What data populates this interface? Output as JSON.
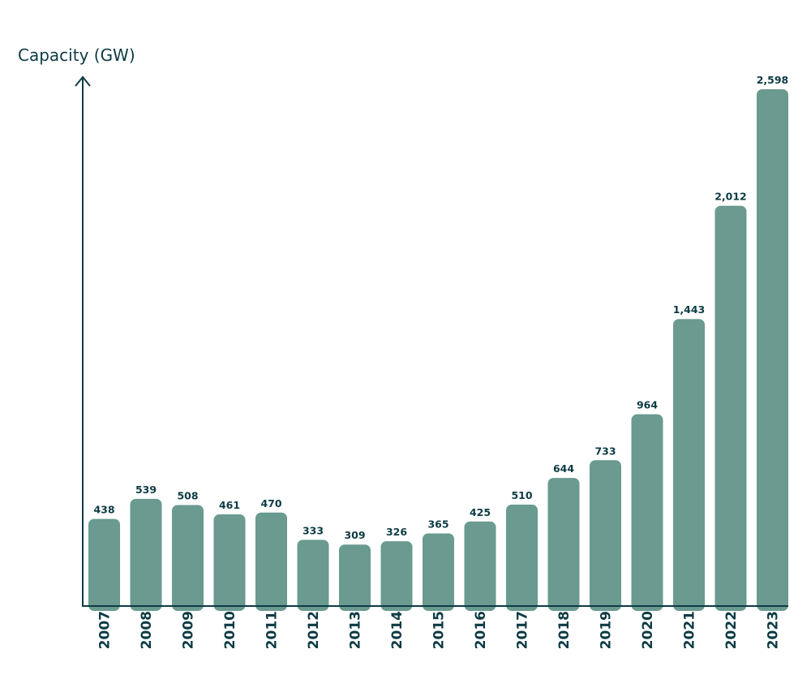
{
  "chart_data": {
    "type": "bar",
    "ylabel": "Capacity (GW)",
    "xlabel": "",
    "categories": [
      "2007",
      "2008",
      "2009",
      "2010",
      "2011",
      "2012",
      "2013",
      "2014",
      "2015",
      "2016",
      "2017",
      "2018",
      "2019",
      "2020",
      "2021",
      "2022",
      "2023"
    ],
    "values": [
      438,
      539,
      508,
      461,
      470,
      333,
      309,
      326,
      365,
      425,
      510,
      644,
      733,
      964,
      1443,
      2012,
      2598
    ],
    "value_labels": [
      "438",
      "539",
      "508",
      "461",
      "470",
      "333",
      "309",
      "326",
      "365",
      "425",
      "510",
      "644",
      "733",
      "964",
      "1,443",
      "2,012",
      "2,598"
    ],
    "ylim": [
      0,
      2598
    ],
    "grid": false,
    "colors": {
      "bar": "#6a9a90",
      "text": "#0d3b44",
      "axis": "#0d3b44"
    }
  }
}
